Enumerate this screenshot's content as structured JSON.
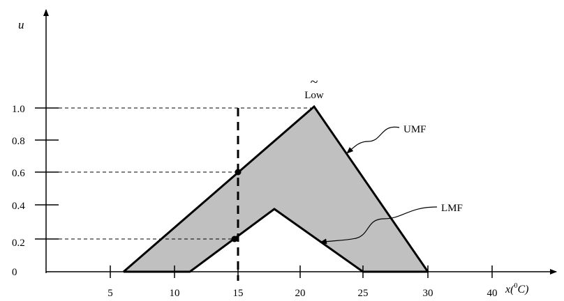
{
  "axes": {
    "y_label": "u",
    "x_label_prefix": "x(",
    "x_label_sup": "0",
    "x_label_unit": "C)"
  },
  "labels": {
    "tilde": "~",
    "low": "Low",
    "umf": "UMF",
    "lmf": "LMF"
  },
  "y_ticks": [
    "0",
    "0.2",
    "0.4",
    "0.6",
    "0.8",
    "1.0"
  ],
  "x_ticks": [
    "5",
    "10",
    "15",
    "20",
    "25",
    "30",
    "40"
  ],
  "colors": {
    "footprint_fill": "#c0c0c0",
    "line": "#000000"
  }
}
